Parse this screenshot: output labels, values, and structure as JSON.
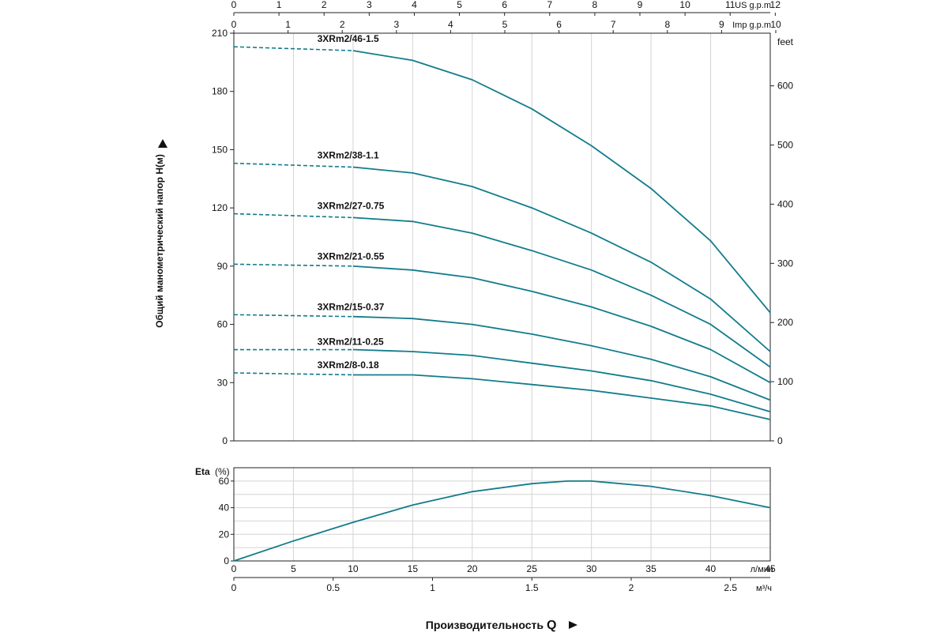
{
  "colors": {
    "curve": "#127c8c",
    "frame": "#222222",
    "grid": "#d4d4d4"
  },
  "chart_data": [
    {
      "type": "line",
      "id": "head",
      "ylabel": "Общий манометрический напор Н(м)",
      "y2label": "feet",
      "xlim": [
        0,
        45
      ],
      "ylim": [
        0,
        210
      ],
      "y_ticks": [
        0,
        30,
        60,
        90,
        120,
        150,
        180,
        210
      ],
      "y2_ticks": [
        0,
        100,
        200,
        300,
        400,
        500,
        600
      ],
      "grid": true,
      "series": [
        {
          "name": "3XRm2/46-1.5",
          "dashed_x": [
            0,
            10
          ],
          "dashed_y": [
            203,
            201
          ],
          "x": [
            10,
            15,
            20,
            25,
            30,
            35,
            40,
            45
          ],
          "y": [
            201,
            196,
            186,
            171,
            152,
            130,
            103,
            66
          ]
        },
        {
          "name": "3XRm2/38-1.1",
          "dashed_x": [
            0,
            10
          ],
          "dashed_y": [
            143,
            141
          ],
          "x": [
            10,
            15,
            20,
            25,
            30,
            35,
            40,
            45
          ],
          "y": [
            141,
            138,
            131,
            120,
            107,
            92,
            73,
            46
          ]
        },
        {
          "name": "3XRm2/27-0.75",
          "dashed_x": [
            0,
            10
          ],
          "dashed_y": [
            117,
            115
          ],
          "x": [
            10,
            15,
            20,
            25,
            30,
            35,
            40,
            45
          ],
          "y": [
            115,
            113,
            107,
            98,
            88,
            75,
            60,
            38
          ]
        },
        {
          "name": "3XRm2/21-0.55",
          "dashed_x": [
            0,
            10
          ],
          "dashed_y": [
            91,
            90
          ],
          "x": [
            10,
            15,
            20,
            25,
            30,
            35,
            40,
            45
          ],
          "y": [
            90,
            88,
            84,
            77,
            69,
            59,
            47,
            30
          ]
        },
        {
          "name": "3XRm2/15-0.37",
          "dashed_x": [
            0,
            10
          ],
          "dashed_y": [
            65,
            64
          ],
          "x": [
            10,
            15,
            20,
            25,
            30,
            35,
            40,
            45
          ],
          "y": [
            64,
            63,
            60,
            55,
            49,
            42,
            33,
            21
          ]
        },
        {
          "name": "3XRm2/11-0.25",
          "dashed_x": [
            0,
            10
          ],
          "dashed_y": [
            47,
            47
          ],
          "x": [
            10,
            15,
            20,
            25,
            30,
            35,
            40,
            45
          ],
          "y": [
            47,
            46,
            44,
            40,
            36,
            31,
            24,
            15
          ]
        },
        {
          "name": "3XRm2/8-0.18",
          "dashed_x": [
            0,
            10
          ],
          "dashed_y": [
            35,
            34
          ],
          "x": [
            10,
            15,
            20,
            25,
            30,
            35,
            40,
            45
          ],
          "y": [
            34,
            34,
            32,
            29,
            26,
            22,
            18,
            11
          ]
        }
      ]
    },
    {
      "type": "line",
      "id": "efficiency",
      "ylabel": "Eta",
      "ylabel_unit": "(%)",
      "xlim": [
        0,
        45
      ],
      "ylim": [
        0,
        70
      ],
      "y_ticks": [
        0,
        20,
        40,
        60
      ],
      "grid": true,
      "series": [
        {
          "x": [
            0,
            5,
            10,
            15,
            20,
            25,
            28,
            30,
            35,
            40,
            45
          ],
          "y": [
            0,
            15,
            29,
            42,
            52,
            58,
            60,
            60,
            56,
            49,
            40
          ]
        }
      ]
    }
  ],
  "axes": {
    "us_gpm": {
      "label": "US g.p.m",
      "ticks": [
        "0",
        "1",
        "2",
        "3",
        "4",
        "5",
        "6",
        "7",
        "8",
        "9",
        "10",
        "11",
        "12"
      ],
      "max": 11.889
    },
    "imp_gpm": {
      "label": "Imp g.p.m",
      "ticks": [
        "0",
        "1",
        "2",
        "3",
        "4",
        "5",
        "6",
        "7",
        "8",
        "9",
        "10"
      ],
      "max": 9.898
    },
    "lpm": {
      "label": "л/мин",
      "ticks": [
        "0",
        "5",
        "10",
        "15",
        "20",
        "25",
        "30",
        "35",
        "40",
        "45"
      ],
      "max": 45
    },
    "m3h": {
      "label": "м³/ч",
      "ticks": [
        "0",
        "0.5",
        "1",
        "1.5",
        "2",
        "2.5"
      ],
      "max": 2.7
    }
  },
  "bottom_title": "Производительность",
  "bottom_title_symbol": "Q"
}
